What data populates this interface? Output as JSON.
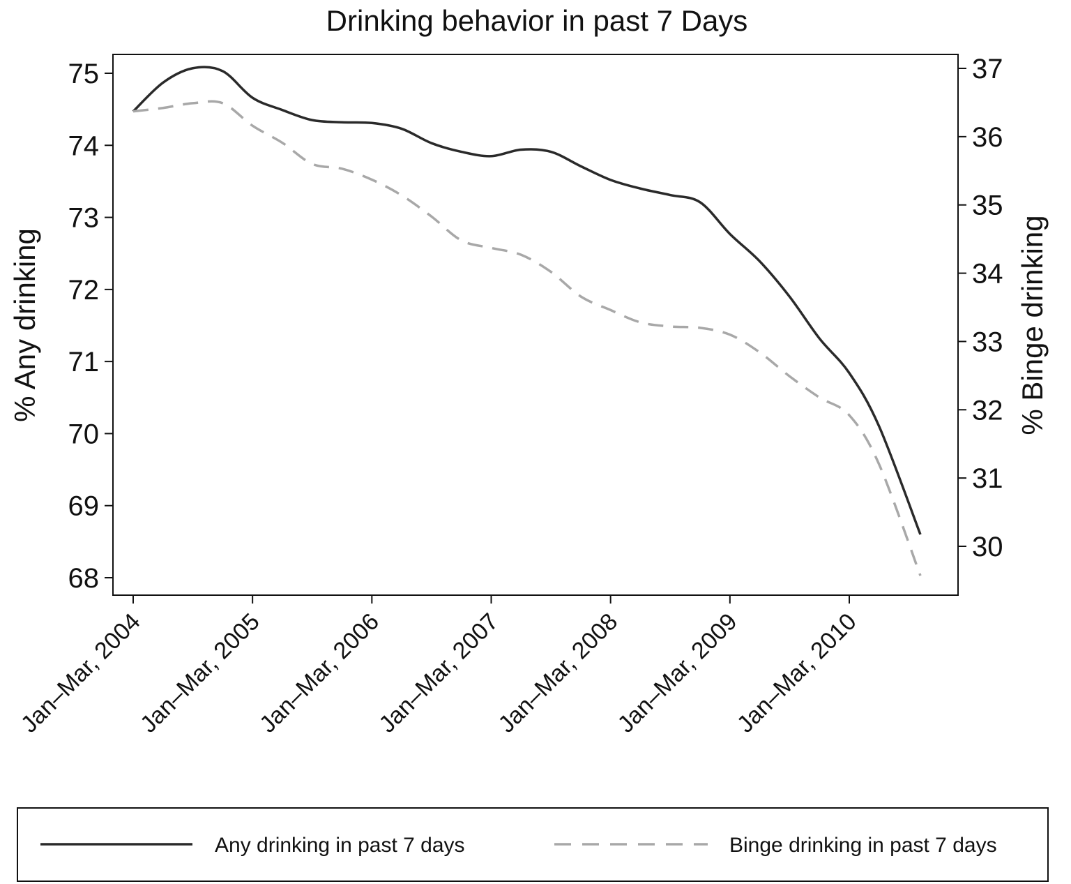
{
  "chart_data": {
    "type": "line",
    "title": "Drinking behavior in past 7 Days",
    "xlabel": "",
    "ylabel_left": "% Any drinking",
    "ylabel_right": "% Binge drinking",
    "ylim_left": [
      67.75,
      75.25
    ],
    "ylim_right": [
      29.3,
      37.2
    ],
    "yticks_left": [
      68,
      69,
      70,
      71,
      72,
      73,
      74,
      75
    ],
    "yticks_right": [
      30,
      31,
      32,
      33,
      34,
      35,
      36,
      37
    ],
    "xtick_labels": [
      "Jan–Mar, 2004",
      "Jan–Mar, 2005",
      "Jan–Mar, 2006",
      "Jan–Mar, 2007",
      "Jan–Mar, 2008",
      "Jan–Mar, 2009",
      "Jan–Mar, 2010"
    ],
    "x": [
      "Jan–Mar, 2004",
      "Apr–Jun, 2004",
      "Jul–Sep, 2004",
      "Oct–Dec, 2004",
      "Jan–Mar, 2005",
      "Apr–Jun, 2005",
      "Jul–Sep, 2005",
      "Oct–Dec, 2005",
      "Jan–Mar, 2006",
      "Apr–Jun, 2006",
      "Jul–Sep, 2006",
      "Oct–Dec, 2006",
      "Jan–Mar, 2007",
      "Apr–Jun, 2007",
      "Jul–Sep, 2007",
      "Oct–Dec, 2007",
      "Jan–Mar, 2008",
      "Apr–Jun, 2008",
      "Jul–Sep, 2008",
      "Oct–Dec, 2008",
      "Jan–Mar, 2009",
      "Apr–Jun, 2009",
      "Jul–Sep, 2009",
      "Oct–Dec, 2009",
      "Jan–Mar, 2010",
      "Apr–Jun, 2010",
      "Jul–Sep, 2010"
    ],
    "grid": false,
    "legend_placement": "bottom",
    "series": [
      {
        "name": "Any drinking in past 7 days",
        "axis": "left",
        "style": "solid",
        "color": "#2a2a2a",
        "values": [
          74.47,
          74.87,
          75.07,
          75.03,
          74.66,
          74.49,
          74.35,
          74.32,
          74.31,
          74.23,
          74.03,
          73.91,
          73.85,
          73.94,
          73.91,
          73.71,
          73.52,
          73.4,
          73.31,
          73.21,
          72.77,
          72.39,
          71.9,
          71.32,
          70.84,
          70.1,
          68.6
        ]
      },
      {
        "name": "Binge drinking in past 7 days",
        "axis": "right",
        "style": "dashed",
        "color": "#a8a8a8",
        "values": [
          36.37,
          36.42,
          36.49,
          36.49,
          36.16,
          35.91,
          35.6,
          35.53,
          35.37,
          35.14,
          34.83,
          34.48,
          34.37,
          34.27,
          34.02,
          33.66,
          33.46,
          33.28,
          33.22,
          33.2,
          33.1,
          32.84,
          32.49,
          32.18,
          31.92,
          31.2,
          29.57
        ]
      }
    ]
  }
}
